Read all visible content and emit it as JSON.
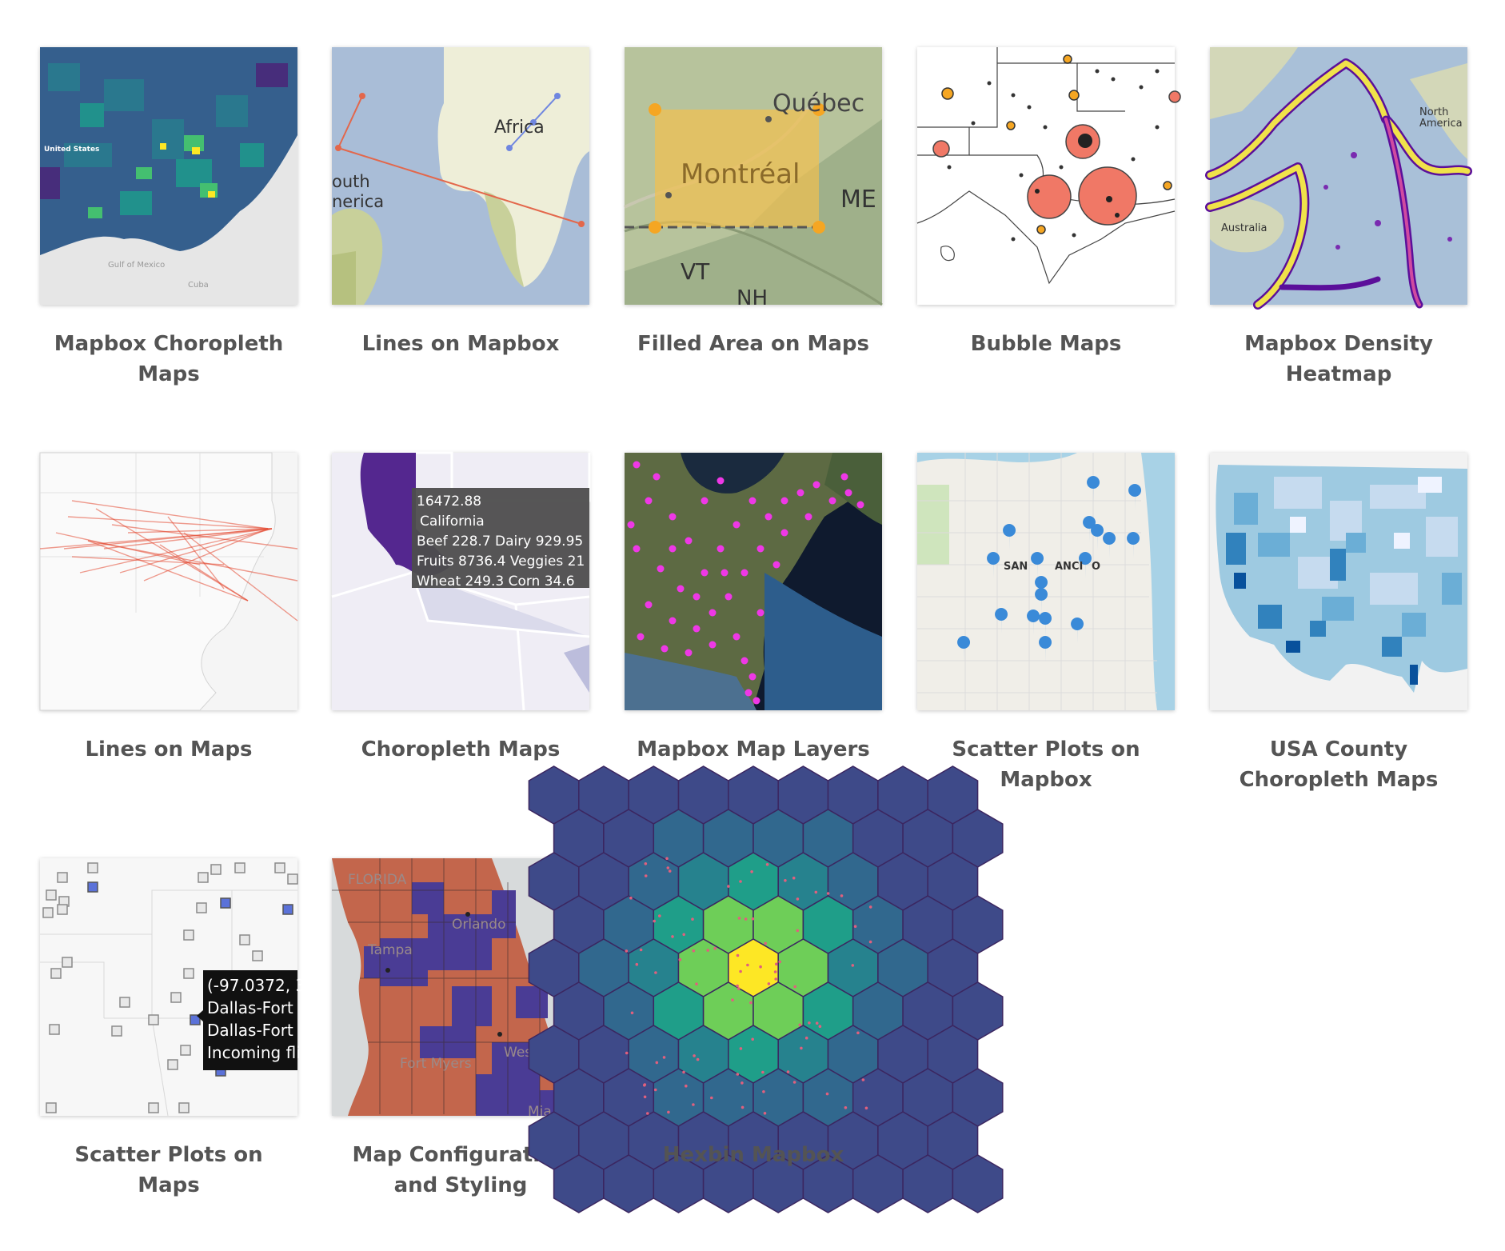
{
  "cards": [
    {
      "title": "Mapbox Choropleth Maps",
      "thumb_labels": [
        "United States",
        "Gulf of Mexico",
        "Cuba"
      ]
    },
    {
      "title": "Lines on Mapbox",
      "thumb_labels": [
        "Africa",
        "outh",
        "nerica"
      ]
    },
    {
      "title": "Filled Area on Maps",
      "thumb_labels": [
        "Québec",
        "Montréal",
        "ME",
        "VT",
        "NH"
      ]
    },
    {
      "title": "Bubble Maps",
      "thumb_labels": []
    },
    {
      "title": "Mapbox Density Heatmap",
      "thumb_labels": [
        "North",
        "America",
        "Australia"
      ]
    },
    {
      "title": "Lines on Maps",
      "thumb_labels": []
    },
    {
      "title": "Choropleth Maps",
      "thumb_labels": [
        "16472.88",
        "California",
        "Beef 228.7 Dairy 929.95",
        "Fruits 8736.4 Veggies 21",
        "Wheat 249.3 Corn 34.6"
      ]
    },
    {
      "title": "Mapbox Map Layers",
      "thumb_labels": []
    },
    {
      "title": "Scatter Plots on Mapbox",
      "thumb_labels": [
        "SAN",
        "ANCI",
        "O"
      ]
    },
    {
      "title": "USA County Choropleth Maps",
      "thumb_labels": []
    },
    {
      "title": "Scatter Plots on Maps",
      "thumb_labels": [
        "(-97.0372, 3",
        "Dallas-Fort",
        "Dallas-Fort",
        "Incoming fli"
      ]
    },
    {
      "title": "Map Configuration and Styling",
      "thumb_labels": [
        "FLORIDA",
        "Orlando",
        "Tampa",
        "Fort Myers",
        "West Pal",
        "Mia"
      ]
    },
    {
      "title": "Hexbin Mapbox",
      "thumb_labels": []
    }
  ]
}
